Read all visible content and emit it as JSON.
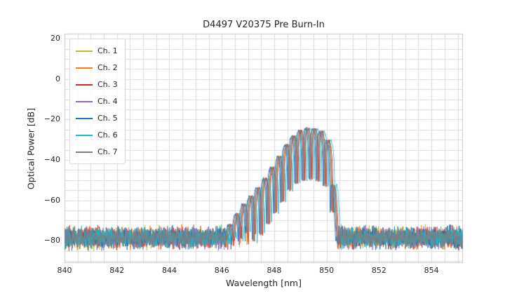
{
  "figure": {
    "background": "#ffffff",
    "axes_background": "#ffffff",
    "grid_color": "#dcdcdc",
    "axes_border_color": "#c8c8c8",
    "text_color": "#262626"
  },
  "chart_data": {
    "type": "line",
    "title": "D4497 V20375 Pre Burn-In",
    "xlabel": "Wavelength [nm]",
    "ylabel": "Optical Power [dB]",
    "xlim": [
      840,
      855.2
    ],
    "ylim": [
      -91,
      22.5
    ],
    "xticks": [
      840,
      842,
      844,
      846,
      848,
      850,
      852,
      854
    ],
    "yticks": [
      20,
      0,
      -20,
      -40,
      -60,
      -80
    ],
    "x_minor_step": 0.5,
    "y_minor_step": 5,
    "grid": true,
    "legend_position": "upper left",
    "series": [
      {
        "name": "Ch. 1",
        "color": "#bcbd22",
        "offset_nm": 0.0,
        "seed": 11
      },
      {
        "name": "Ch. 2",
        "color": "#ff7f0e",
        "offset_nm": 0.03,
        "seed": 22
      },
      {
        "name": "Ch. 3",
        "color": "#d62728",
        "offset_nm": 0.06,
        "seed": 33
      },
      {
        "name": "Ch. 4",
        "color": "#9467bd",
        "offset_nm": -0.03,
        "seed": 44
      },
      {
        "name": "Ch. 5",
        "color": "#1f77b4",
        "offset_nm": -0.06,
        "seed": 55
      },
      {
        "name": "Ch. 6",
        "color": "#17becf",
        "offset_nm": 0.13,
        "seed": 66
      },
      {
        "name": "Ch. 7",
        "color": "#7f7f7f",
        "offset_nm": 0.01,
        "seed": 77
      }
    ],
    "spectrum_model": {
      "x_start": 840.0,
      "x_end": 855.2,
      "x_step": 0.01,
      "noise_floor_db": -78.5,
      "noise_sigma_db": 2.4,
      "fringe_period_nm": 0.27,
      "fringe_center_nm": 849.25,
      "notch_depth_limit_db": 28,
      "envelope_nm_db": [
        [
          845.5,
          -95
        ],
        [
          846.3,
          -72
        ],
        [
          846.7,
          -64
        ],
        [
          847.1,
          -58
        ],
        [
          847.5,
          -52
        ],
        [
          847.85,
          -45
        ],
        [
          848.2,
          -38
        ],
        [
          848.55,
          -30.5
        ],
        [
          848.85,
          -26.5
        ],
        [
          849.1,
          -25.0
        ],
        [
          849.3,
          -24.3
        ],
        [
          849.55,
          -24.8
        ],
        [
          849.8,
          -26.2
        ],
        [
          850.0,
          -29
        ],
        [
          850.15,
          -34
        ],
        [
          850.3,
          -55
        ],
        [
          850.42,
          -80
        ],
        [
          850.55,
          -95
        ]
      ]
    }
  }
}
